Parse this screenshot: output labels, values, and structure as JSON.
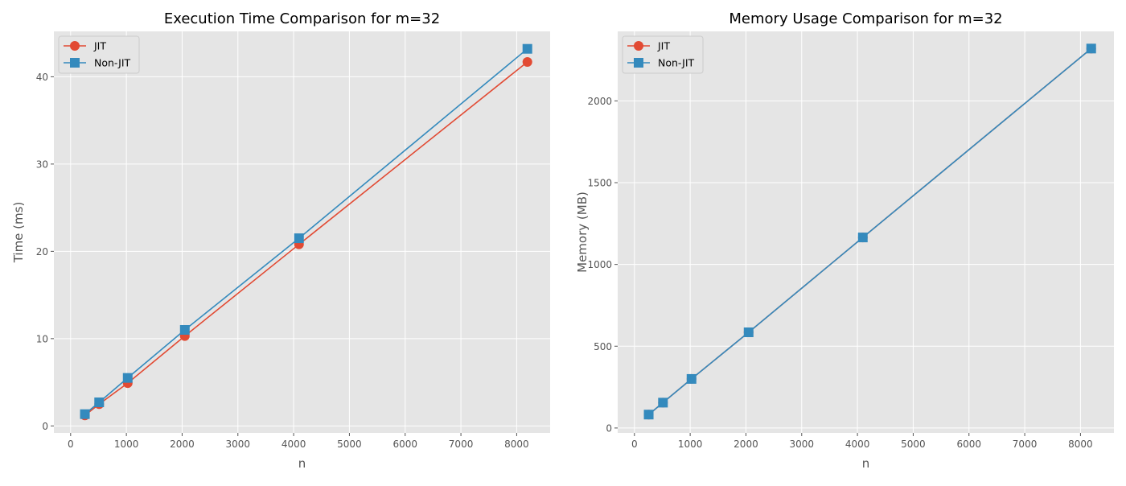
{
  "chart_data": [
    {
      "type": "line",
      "title": "Execution Time Comparison for m=32",
      "xlabel": "n",
      "ylabel": "Time (ms)",
      "xlim": [
        -300,
        8600
      ],
      "ylim": [
        -0.8,
        45.2
      ],
      "xticks": [
        0,
        1000,
        2000,
        3000,
        4000,
        5000,
        6000,
        7000,
        8000
      ],
      "yticks": [
        0,
        10,
        20,
        30,
        40
      ],
      "grid": true,
      "legend_position": "top-left",
      "series": [
        {
          "name": "JIT",
          "color": "#e24a33",
          "marker": "circle",
          "x": [
            256,
            512,
            1024,
            2048,
            4096,
            8192
          ],
          "y": [
            1.2,
            2.5,
            4.9,
            10.3,
            20.8,
            41.7
          ]
        },
        {
          "name": "Non-JIT",
          "color": "#348abd",
          "marker": "square",
          "x": [
            256,
            512,
            1024,
            2048,
            4096,
            8192
          ],
          "y": [
            1.35,
            2.7,
            5.5,
            11.0,
            21.5,
            43.2
          ]
        }
      ]
    },
    {
      "type": "line",
      "title": "Memory Usage Comparison for m=32",
      "xlabel": "n",
      "ylabel": "Memory (MB)",
      "xlim": [
        -300,
        8600
      ],
      "ylim": [
        -30,
        2425
      ],
      "xticks": [
        0,
        1000,
        2000,
        3000,
        4000,
        5000,
        6000,
        7000,
        8000
      ],
      "yticks": [
        0,
        500,
        1000,
        1500,
        2000
      ],
      "grid": true,
      "legend_position": "top-left",
      "series": [
        {
          "name": "JIT",
          "color": "#e24a33",
          "marker": "circle",
          "x": [
            256,
            512,
            1024,
            2048,
            4096,
            8192
          ],
          "y": [
            82,
            155,
            300,
            585,
            1165,
            2320
          ]
        },
        {
          "name": "Non-JIT",
          "color": "#348abd",
          "marker": "square",
          "x": [
            256,
            512,
            1024,
            2048,
            4096,
            8192
          ],
          "y": [
            82,
            155,
            300,
            585,
            1165,
            2320
          ]
        }
      ]
    }
  ]
}
